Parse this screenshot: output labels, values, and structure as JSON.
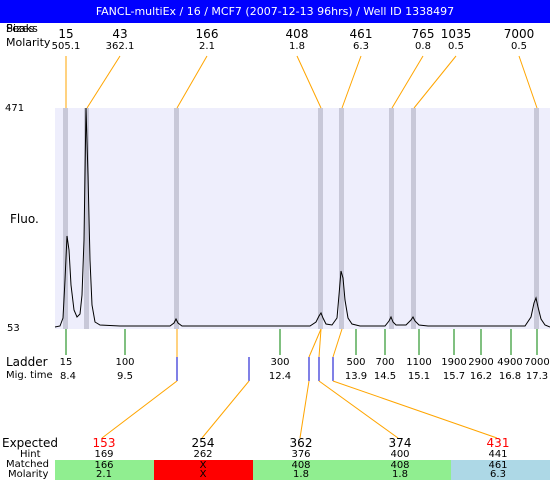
{
  "header": {
    "title": "FANCL-multiEx / 16 / MCF7 (2007-12-13 96hrs) / Well ID 1338497",
    "left_label_sizes": "Sizes",
    "left_label_molarity": "Molarity",
    "left_label_overlay": "Peaks"
  },
  "peaks_top": [
    {
      "size": "15",
      "molarity": "505.1"
    },
    {
      "size": "43",
      "molarity": "362.1"
    },
    {
      "size": "166",
      "molarity": "2.1"
    },
    {
      "size": "408",
      "molarity": "1.8"
    },
    {
      "size": "461",
      "molarity": "6.3"
    },
    {
      "size": "765",
      "molarity": "0.8"
    },
    {
      "size": "1035",
      "molarity": "0.5"
    },
    {
      "size": "7000",
      "molarity": "0.5"
    }
  ],
  "plot": {
    "y_max_label": "471",
    "y_min_label": "53",
    "y_axis_label": "Fluo."
  },
  "ladder": {
    "label": "Ladder",
    "mig_label": "Mig. time",
    "entries": [
      {
        "size": "15",
        "time": "8.4"
      },
      {
        "size": "100",
        "time": "9.5"
      },
      {
        "size": "300",
        "time": "12.4"
      },
      {
        "size": "500",
        "time": "13.9"
      },
      {
        "size": "700",
        "time": "14.5"
      },
      {
        "size": "1100",
        "time": "15.1"
      },
      {
        "size": "1900",
        "time": "15.7"
      },
      {
        "size": "2900",
        "time": "16.2"
      },
      {
        "size": "4900",
        "time": "16.8"
      },
      {
        "size": "7000",
        "time": "17.3"
      }
    ]
  },
  "expected": {
    "label": "Expected",
    "hint_label": "Hint",
    "matched_label": "Matched",
    "molarity_label": "Molarity",
    "columns": [
      {
        "expected": "153",
        "hint": "169",
        "matched": "166",
        "molarity": "2.1",
        "expected_color": "#ff0000",
        "band_color": "#90ee90"
      },
      {
        "expected": "254",
        "hint": "262",
        "matched": "X",
        "molarity": "X",
        "expected_color": "#000000",
        "band_color": "#ff0000"
      },
      {
        "expected": "362",
        "hint": "376",
        "matched": "408",
        "molarity": "1.8",
        "expected_color": "#000000",
        "band_color": "#90ee90"
      },
      {
        "expected": "374",
        "hint": "400",
        "matched": "408",
        "molarity": "1.8",
        "expected_color": "#000000",
        "band_color": "#90ee90"
      },
      {
        "expected": "431",
        "hint": "441",
        "matched": "461",
        "molarity": "6.3",
        "expected_color": "#ff0000",
        "band_color": "#add8e6"
      }
    ]
  },
  "colors": {
    "title_bg": "#0000ff",
    "plot_bg": "#eeeefc",
    "peak_band": "#c8c8d8",
    "connector_orange": "#ffa500",
    "ladder_tick_green": "#008000",
    "marker_blue": "#0000cc"
  }
}
